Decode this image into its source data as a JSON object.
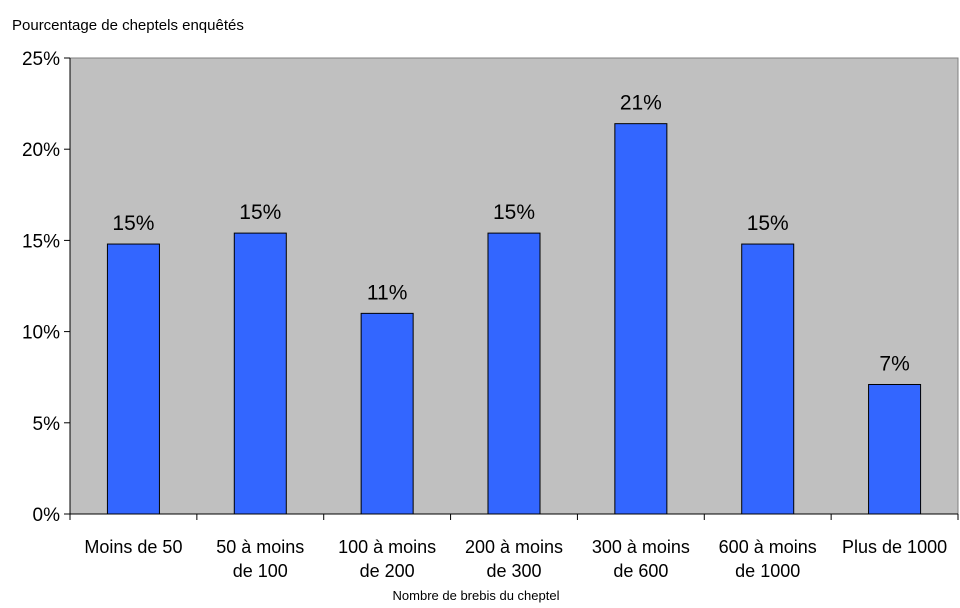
{
  "chart_data": {
    "type": "bar",
    "ylabel": "Pourcentage de cheptels enquêtés",
    "xlabel": "Nombre de brebis du cheptel",
    "categories": [
      [
        "Moins de 50"
      ],
      [
        "50 à moins",
        "de 100"
      ],
      [
        "100 à moins",
        "de 200"
      ],
      [
        "200 à moins",
        "de 300"
      ],
      [
        "300 à moins",
        "de 600"
      ],
      [
        "600 à moins",
        "de 1000"
      ],
      [
        "Plus de 1000"
      ]
    ],
    "values": [
      14.8,
      15.4,
      11.0,
      15.4,
      21.4,
      14.8,
      7.1
    ],
    "data_labels": [
      "15%",
      "15%",
      "11%",
      "15%",
      "21%",
      "15%",
      "7%"
    ],
    "yticks": [
      "0%",
      "5%",
      "10%",
      "15%",
      "20%",
      "25%"
    ],
    "ylim": [
      0,
      25
    ],
    "colors": {
      "bar": "#3366FF",
      "plot_background": "#C0C0C0",
      "bar_border": "#000000"
    }
  }
}
